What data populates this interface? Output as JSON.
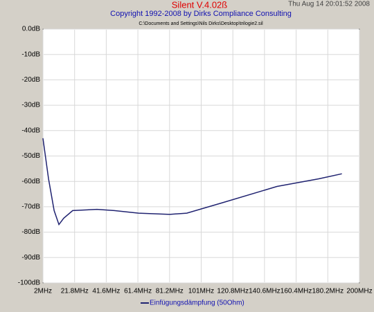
{
  "chart_data": {
    "type": "line",
    "title": "Silent V.4.02ß",
    "subtitle": "Copyright 1992-2008 by Dirks Compliance Consulting",
    "timestamp": "Thu Aug 14 20:01:52 2008",
    "file": "C:\\Documents and Settings\\Nils Dirks\\Desktop\\trilogie2.sil",
    "x": [
      2,
      5.5,
      9,
      12,
      15,
      20.6,
      35.8,
      46.6,
      61.8,
      81.3,
      92,
      113.8,
      148.4,
      174.5,
      189
    ],
    "series": [
      {
        "name": "Einfügungsdämpfung (50Ohm)",
        "color": "#1f2270",
        "values": [
          -43,
          -59,
          -71.5,
          -77,
          -74.5,
          -71.5,
          -71,
          -71.5,
          -72.5,
          -73,
          -72.5,
          -68.5,
          -62,
          -59,
          -57
        ]
      }
    ],
    "xlim": [
      2,
      200
    ],
    "xticks": [
      {
        "value": 2,
        "label": "2MHz"
      },
      {
        "value": 21.8,
        "label": "21.8MHz"
      },
      {
        "value": 41.6,
        "label": "41.6MHz"
      },
      {
        "value": 61.4,
        "label": "61.4MHz"
      },
      {
        "value": 81.2,
        "label": "81.2MHz"
      },
      {
        "value": 101,
        "label": "101MHz"
      },
      {
        "value": 120.8,
        "label": "120.8MHz"
      },
      {
        "value": 140.6,
        "label": "140.6MHz"
      },
      {
        "value": 160.4,
        "label": "160.4MHz"
      },
      {
        "value": 180.2,
        "label": "180.2MHz"
      },
      {
        "value": 200,
        "label": "200MHz"
      }
    ],
    "ylim": [
      -100,
      0
    ],
    "yticks": [
      {
        "value": 0,
        "label": "0.0dB"
      },
      {
        "value": -10,
        "label": "-10dB"
      },
      {
        "value": -20,
        "label": "-20dB"
      },
      {
        "value": -30,
        "label": "-30dB"
      },
      {
        "value": -40,
        "label": "-40dB"
      },
      {
        "value": -50,
        "label": "-50dB"
      },
      {
        "value": -60,
        "label": "-60dB"
      },
      {
        "value": -70,
        "label": "-70dB"
      },
      {
        "value": -80,
        "label": "-80dB"
      },
      {
        "value": -90,
        "label": "-90dB"
      },
      {
        "value": -100,
        "label": "-100dB"
      }
    ],
    "grid": true
  }
}
